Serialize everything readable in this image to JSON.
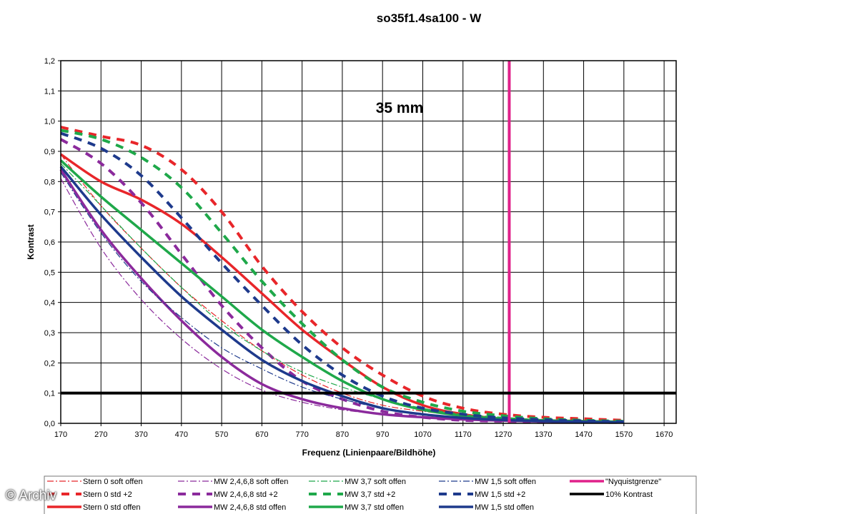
{
  "watermark": "© Archiv",
  "chart_data": {
    "type": "line",
    "title": "so35f1.4sa100 - W",
    "annotation": "35 mm",
    "xlabel": "Frequenz (Linienpaare/Bildhöhe)",
    "ylabel": "Kontrast",
    "xlim": [
      170,
      1700
    ],
    "ylim": [
      0,
      1.2
    ],
    "grid": true,
    "legend_position": "bottom",
    "x_ticks": [
      "170",
      "270",
      "370",
      "470",
      "570",
      "670",
      "770",
      "870",
      "970",
      "1070",
      "1170",
      "1270",
      "1370",
      "1470",
      "1570",
      "1670"
    ],
    "y_ticks": [
      "0,0",
      "0,1",
      "0,2",
      "0,3",
      "0,4",
      "0,5",
      "0,6",
      "0,7",
      "0,8",
      "0,9",
      "1,0",
      "1,1",
      "1,2"
    ],
    "x_tick_values": [
      170,
      270,
      370,
      470,
      570,
      670,
      770,
      870,
      970,
      1070,
      1170,
      1270,
      1370,
      1470,
      1570,
      1670
    ],
    "y_tick_values": [
      0,
      0.1,
      0.2,
      0.3,
      0.4,
      0.5,
      0.6,
      0.7,
      0.8,
      0.9,
      1.0,
      1.1,
      1.2
    ],
    "series": [
      {
        "name": "Stern 0 soft offen",
        "color": "#e8262a",
        "style": "dashdot",
        "width": 1.2,
        "x": [
          170,
          270,
          370,
          470,
          570,
          670,
          770,
          870,
          970,
          1070,
          1170,
          1270,
          1370,
          1470,
          1570
        ],
        "y": [
          0.89,
          0.72,
          0.58,
          0.45,
          0.34,
          0.24,
          0.16,
          0.1,
          0.06,
          0.04,
          0.025,
          0.015,
          0.01,
          0.008,
          0.005
        ]
      },
      {
        "name": "Stern 0 std +2",
        "color": "#e8262a",
        "style": "dash",
        "width": 4,
        "x": [
          170,
          270,
          370,
          470,
          570,
          670,
          770,
          870,
          970,
          1070,
          1170,
          1270,
          1370,
          1470,
          1570
        ],
        "y": [
          0.98,
          0.95,
          0.92,
          0.84,
          0.7,
          0.52,
          0.37,
          0.25,
          0.16,
          0.09,
          0.05,
          0.03,
          0.02,
          0.015,
          0.01
        ]
      },
      {
        "name": "Stern 0 std offen",
        "color": "#e8262a",
        "style": "solid",
        "width": 3.5,
        "x": [
          170,
          270,
          370,
          470,
          570,
          670,
          770,
          870,
          970,
          1070,
          1170,
          1270,
          1370,
          1470,
          1570
        ],
        "y": [
          0.89,
          0.8,
          0.74,
          0.66,
          0.55,
          0.43,
          0.31,
          0.21,
          0.12,
          0.06,
          0.03,
          0.015,
          0.01,
          0.007,
          0.005
        ]
      },
      {
        "name": "MW 2,4,6,8 soft offen",
        "color": "#8b2a9c",
        "style": "dashdot",
        "width": 1.2,
        "x": [
          170,
          270,
          370,
          470,
          570,
          670,
          770,
          870,
          970,
          1070,
          1170,
          1270,
          1370,
          1470,
          1570
        ],
        "y": [
          0.81,
          0.58,
          0.41,
          0.28,
          0.18,
          0.11,
          0.07,
          0.045,
          0.03,
          0.02,
          0.015,
          0.01,
          0.007,
          0.005,
          0.004
        ]
      },
      {
        "name": "MW 2,4,6,8 std +2",
        "color": "#8b2a9c",
        "style": "dash",
        "width": 4,
        "x": [
          170,
          270,
          370,
          470,
          570,
          670,
          770,
          870,
          970,
          1070,
          1170,
          1270,
          1370,
          1470,
          1570
        ],
        "y": [
          0.94,
          0.86,
          0.73,
          0.56,
          0.39,
          0.25,
          0.14,
          0.08,
          0.04,
          0.02,
          0.01,
          0.007,
          0.005,
          0.004,
          0.003
        ]
      },
      {
        "name": "MW 2,4,6,8 std offen",
        "color": "#8b2a9c",
        "style": "solid",
        "width": 3.5,
        "x": [
          170,
          270,
          370,
          470,
          570,
          670,
          770,
          870,
          970,
          1070,
          1170,
          1270,
          1370,
          1470,
          1570
        ],
        "y": [
          0.84,
          0.64,
          0.48,
          0.34,
          0.22,
          0.13,
          0.08,
          0.05,
          0.03,
          0.02,
          0.013,
          0.009,
          0.006,
          0.004,
          0.003
        ]
      },
      {
        "name": "MW 3,7 soft offen",
        "color": "#1fa84a",
        "style": "dashdot",
        "width": 1.2,
        "x": [
          170,
          270,
          370,
          470,
          570,
          670,
          770,
          870,
          970,
          1070,
          1170,
          1270,
          1370,
          1470,
          1570
        ],
        "y": [
          0.86,
          0.72,
          0.58,
          0.45,
          0.33,
          0.24,
          0.17,
          0.12,
          0.08,
          0.05,
          0.03,
          0.02,
          0.012,
          0.008,
          0.005
        ]
      },
      {
        "name": "MW 3,7 std +2",
        "color": "#1fa84a",
        "style": "dash",
        "width": 4,
        "x": [
          170,
          270,
          370,
          470,
          570,
          670,
          770,
          870,
          970,
          1070,
          1170,
          1270,
          1370,
          1470,
          1570
        ],
        "y": [
          0.97,
          0.94,
          0.88,
          0.78,
          0.63,
          0.47,
          0.33,
          0.21,
          0.12,
          0.07,
          0.04,
          0.025,
          0.015,
          0.01,
          0.007
        ]
      },
      {
        "name": "MW 3,7 std offen",
        "color": "#1fa84a",
        "style": "solid",
        "width": 3.5,
        "x": [
          170,
          270,
          370,
          470,
          570,
          670,
          770,
          870,
          970,
          1070,
          1170,
          1270,
          1370,
          1470,
          1570
        ],
        "y": [
          0.87,
          0.75,
          0.64,
          0.53,
          0.42,
          0.31,
          0.22,
          0.14,
          0.08,
          0.045,
          0.025,
          0.015,
          0.01,
          0.007,
          0.005
        ]
      },
      {
        "name": "MW 1,5 soft offen",
        "color": "#1e3a8c",
        "style": "dashdot",
        "width": 1.2,
        "x": [
          170,
          270,
          370,
          470,
          570,
          670,
          770,
          870,
          970,
          1070,
          1170,
          1270,
          1370,
          1470,
          1570
        ],
        "y": [
          0.83,
          0.63,
          0.47,
          0.35,
          0.25,
          0.18,
          0.12,
          0.08,
          0.05,
          0.03,
          0.02,
          0.012,
          0.008,
          0.005,
          0.004
        ]
      },
      {
        "name": "MW 1,5 std +2",
        "color": "#1e3a8c",
        "style": "dash",
        "width": 4,
        "x": [
          170,
          270,
          370,
          470,
          570,
          670,
          770,
          870,
          970,
          1070,
          1170,
          1270,
          1370,
          1470,
          1570
        ],
        "y": [
          0.96,
          0.91,
          0.82,
          0.68,
          0.53,
          0.39,
          0.26,
          0.16,
          0.09,
          0.05,
          0.03,
          0.018,
          0.012,
          0.008,
          0.005
        ]
      },
      {
        "name": "MW 1,5 std offen",
        "color": "#1e3a8c",
        "style": "solid",
        "width": 3.5,
        "x": [
          170,
          270,
          370,
          470,
          570,
          670,
          770,
          870,
          970,
          1070,
          1170,
          1270,
          1370,
          1470,
          1570
        ],
        "y": [
          0.85,
          0.69,
          0.55,
          0.42,
          0.31,
          0.21,
          0.14,
          0.09,
          0.05,
          0.03,
          0.018,
          0.011,
          0.007,
          0.005,
          0.003
        ]
      }
    ],
    "reference_lines": [
      {
        "name": "\"Nyquistgrenze\"",
        "color": "#e0218a",
        "orientation": "vertical",
        "value": 1285,
        "width": 4
      },
      {
        "name": "10% Kontrast",
        "color": "#000000",
        "orientation": "horizontal",
        "value": 0.1,
        "width": 4
      }
    ],
    "legend": [
      [
        "Stern 0 soft offen",
        "MW 2,4,6,8 soft offen",
        "MW 3,7 soft offen",
        "MW 1,5 soft offen",
        "\"Nyquistgrenze\""
      ],
      [
        "Stern 0 std +2",
        "MW 2,4,6,8 std +2",
        "MW 3,7 std +2",
        "MW 1,5 std +2",
        "10% Kontrast"
      ],
      [
        "Stern 0 std offen",
        "MW 2,4,6,8 std offen",
        "MW 3,7 std offen",
        "MW 1,5 std offen",
        ""
      ]
    ]
  }
}
